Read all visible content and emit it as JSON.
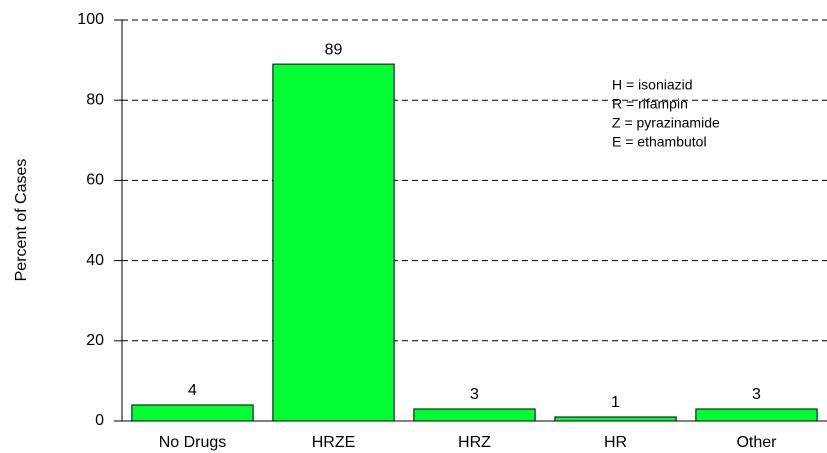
{
  "chart_data": {
    "type": "bar",
    "ylabel": "Percent of Cases",
    "categories": [
      "No Drugs",
      "HRZE",
      "HRZ",
      "HR",
      "Other"
    ],
    "values": [
      4,
      89,
      3,
      1,
      3
    ],
    "color": "#00ff33",
    "ylim": [
      0,
      100
    ],
    "yticks": [
      0,
      20,
      40,
      60,
      80,
      100
    ],
    "grid": true,
    "annotations": [
      "H = isoniazid",
      "R = rifampin",
      "Z = pyrazinamide",
      "E = ethambutol"
    ]
  }
}
